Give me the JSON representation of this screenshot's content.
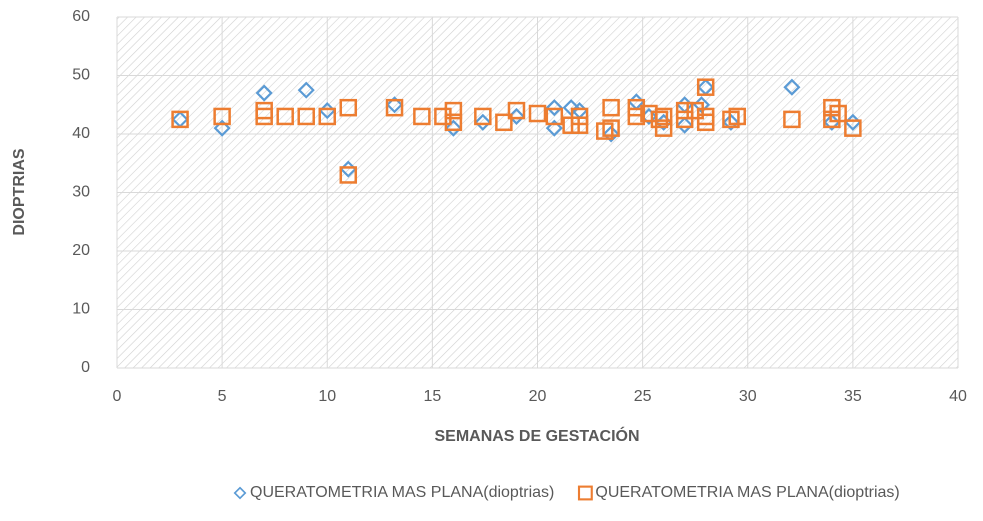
{
  "chart_data": {
    "type": "scatter",
    "xlabel": "SEMANAS DE GESTACIÓN",
    "ylabel": "DIOPTRIAS",
    "xlim": [
      0,
      40
    ],
    "xticks": [
      0,
      5,
      10,
      15,
      20,
      25,
      30,
      35,
      40
    ],
    "ylim": [
      0,
      60
    ],
    "yticks": [
      0,
      10,
      20,
      30,
      40,
      50,
      60
    ],
    "grid": true,
    "legend": "bottom",
    "series": [
      {
        "name": "QUERATOMETRIA MAS PLANA(dioptrias)",
        "color": "#5b9bd5",
        "marker": "diamond",
        "x": [
          3,
          5,
          7,
          9,
          10,
          11,
          13.2,
          16,
          17.4,
          19,
          20.8,
          20.8,
          21.6,
          22,
          23.5,
          24.7,
          25.3,
          26,
          27,
          27,
          27.8,
          28,
          29.2,
          32.1,
          34,
          35
        ],
        "values": [
          42.5,
          41,
          47,
          47.5,
          44,
          34,
          45,
          41,
          42,
          43,
          44.5,
          41,
          44.5,
          44,
          40,
          45.5,
          43,
          42,
          45,
          41.5,
          45,
          48,
          42,
          48,
          42,
          42
        ]
      },
      {
        "name": "QUERATOMETRIA MAS PLANA(dioptrias)",
        "color": "#ed7d31",
        "marker": "square",
        "x": [
          3,
          5,
          7,
          7,
          8,
          9,
          10,
          11,
          11,
          13.2,
          14.5,
          15.5,
          16,
          16,
          17.4,
          18.4,
          19,
          20,
          20.8,
          21.6,
          22,
          22,
          23.2,
          23.5,
          23.5,
          24.7,
          24.7,
          25.3,
          25.8,
          26,
          26,
          27,
          27,
          27.5,
          28,
          28,
          28,
          29.2,
          29.5,
          32.1,
          34,
          34,
          34.3,
          35
        ],
        "values": [
          42.5,
          43,
          44,
          43,
          43,
          43,
          43,
          44.5,
          33,
          44.5,
          43,
          43,
          44,
          42,
          43,
          42,
          44,
          43.5,
          43,
          41.5,
          43,
          41.5,
          40.5,
          44.5,
          41,
          44.5,
          43,
          43.5,
          42.5,
          41,
          43,
          44,
          42.5,
          44,
          48,
          43,
          42,
          42.5,
          43,
          42.5,
          44.5,
          42.5,
          43.5,
          41
        ]
      }
    ]
  }
}
